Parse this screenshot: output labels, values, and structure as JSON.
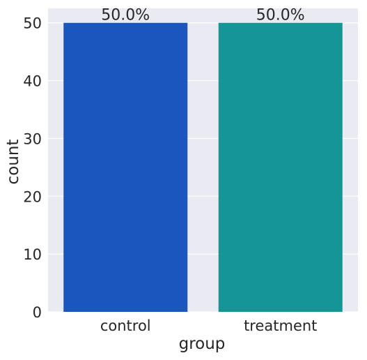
{
  "chart_data": {
    "type": "bar",
    "categories": [
      "control",
      "treatment"
    ],
    "values": [
      50,
      50
    ],
    "bar_labels": [
      "50.0%",
      "50.0%"
    ],
    "colors": [
      "#1a56be",
      "#159595"
    ],
    "background_color": "#eaeaf2",
    "title": "",
    "xlabel": "group",
    "ylabel": "count",
    "ylim": [
      0,
      52.5
    ],
    "yticks": [
      0,
      10,
      20,
      30,
      40,
      50
    ],
    "grid": true,
    "legend": "none"
  }
}
